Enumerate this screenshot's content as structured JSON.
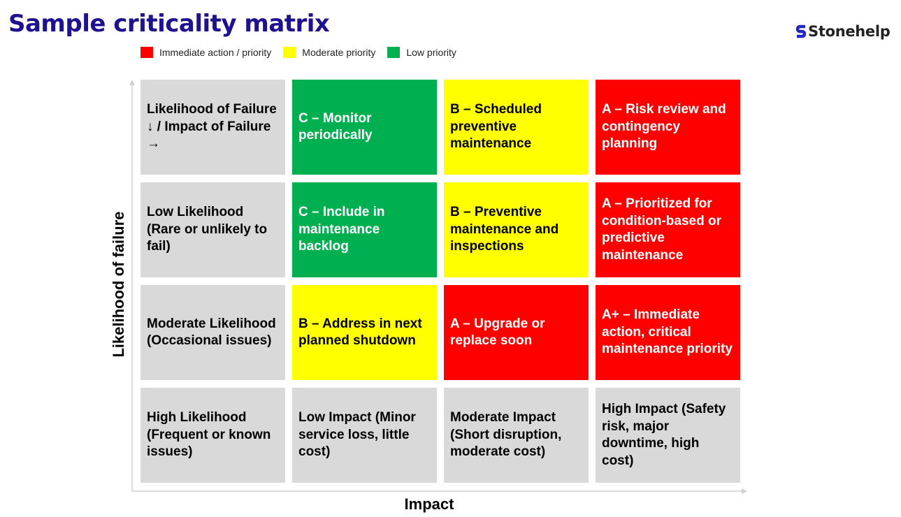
{
  "title": "Sample criticality matrix",
  "brand": {
    "name": "Stonehelp",
    "logo_icon": "stonehelp-s-logo",
    "logo_color": "#2327c8"
  },
  "legend": [
    {
      "label": "Immediate action / priority",
      "color": "#ff0000"
    },
    {
      "label": "Moderate priority",
      "color": "#ffff00"
    },
    {
      "label": "Low priority",
      "color": "#00b050"
    }
  ],
  "axes": {
    "y_label": "Likelihood of failure",
    "x_label": "Impact"
  },
  "matrix": {
    "rows": [
      {
        "cells": [
          {
            "text": "Likelihood of Failure ↓ / Impact of Failure →",
            "color": "#d9d9d9",
            "text_color": "#000000"
          },
          {
            "text": "C – Monitor periodically",
            "color": "#00b050",
            "text_color": "#ffffff"
          },
          {
            "text": "B – Scheduled preventive maintenance",
            "color": "#ffff00",
            "text_color": "#000000"
          },
          {
            "text": "A – Risk review and contingency planning",
            "color": "#ff0000",
            "text_color": "#ffffff"
          }
        ]
      },
      {
        "cells": [
          {
            "text": "Low Likelihood (Rare or unlikely to fail)",
            "color": "#d9d9d9",
            "text_color": "#000000"
          },
          {
            "text": "C – Include in maintenance backlog",
            "color": "#00b050",
            "text_color": "#ffffff"
          },
          {
            "text": "B – Preventive maintenance and inspections",
            "color": "#ffff00",
            "text_color": "#000000"
          },
          {
            "text": "A – Prioritized for condition-based or predictive maintenance",
            "color": "#ff0000",
            "text_color": "#ffffff"
          }
        ]
      },
      {
        "cells": [
          {
            "text": "Moderate Likelihood (Occasional issues)",
            "color": "#d9d9d9",
            "text_color": "#000000"
          },
          {
            "text": "B – Address in next planned shutdown",
            "color": "#ffff00",
            "text_color": "#000000"
          },
          {
            "text": "A – Upgrade or replace soon",
            "color": "#ff0000",
            "text_color": "#ffffff"
          },
          {
            "text": "A+ – Immediate action, critical maintenance priority",
            "color": "#ff0000",
            "text_color": "#ffffff"
          }
        ]
      },
      {
        "cells": [
          {
            "text": "High Likelihood (Frequent or known issues)",
            "color": "#d9d9d9",
            "text_color": "#000000"
          },
          {
            "text": "Low Impact (Minor service loss, little cost)",
            "color": "#d9d9d9",
            "text_color": "#000000"
          },
          {
            "text": "Moderate Impact (Short disruption, moderate cost)",
            "color": "#d9d9d9",
            "text_color": "#000000"
          },
          {
            "text": "High Impact (Safety risk, major downtime, high cost)",
            "color": "#d9d9d9",
            "text_color": "#000000"
          }
        ]
      }
    ]
  }
}
